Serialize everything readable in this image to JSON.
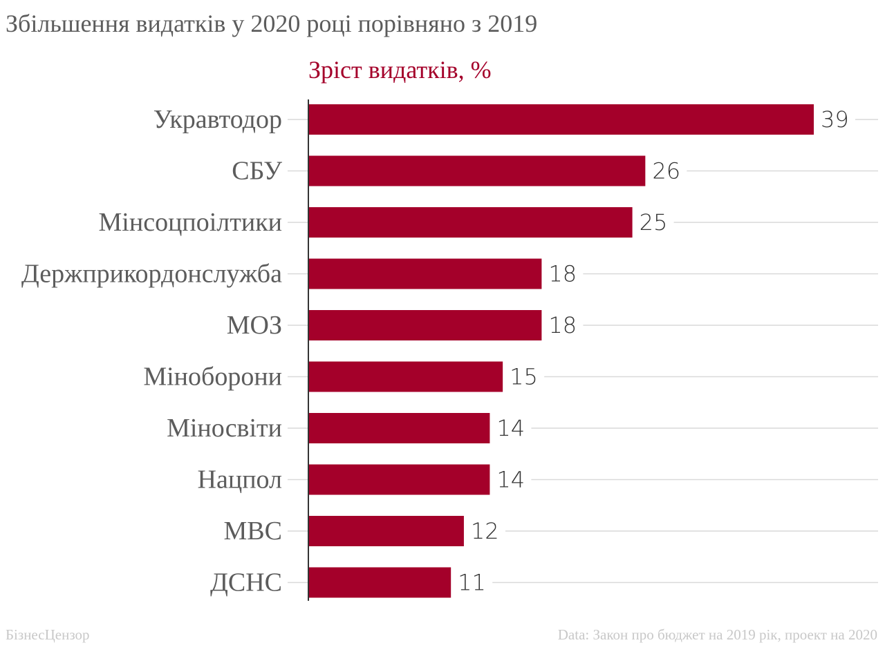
{
  "header": {
    "title": "Збільшення видатків у 2020 році порівняно з 2019"
  },
  "footer": {
    "brand": "БізнесЦензор",
    "source": "Data: Закон про бюджет на 2019 рік, проект на 2020"
  },
  "chart_data": {
    "type": "bar",
    "orientation": "horizontal",
    "title": "Збільшення видатків у 2020 році порівняно з 2019",
    "series_title": "Зріст видатків, %",
    "categories": [
      "Укравтодор",
      "СБУ",
      "Мінсоцпоілтики",
      "Держприкордонслужба",
      "МОЗ",
      "Міноборони",
      "Міносвіти",
      "Нацпол",
      "МВС",
      "ДСНС"
    ],
    "values": [
      39,
      26,
      25,
      18,
      18,
      15,
      14,
      14,
      12,
      11
    ],
    "xlim": [
      0,
      39
    ],
    "grid": true,
    "legend": "none",
    "colors": {
      "bar": "#a4002a",
      "title": "#5c5c5c",
      "series_title": "#a4002a",
      "grid": "#d9d9d9",
      "axis": "#333333"
    }
  }
}
